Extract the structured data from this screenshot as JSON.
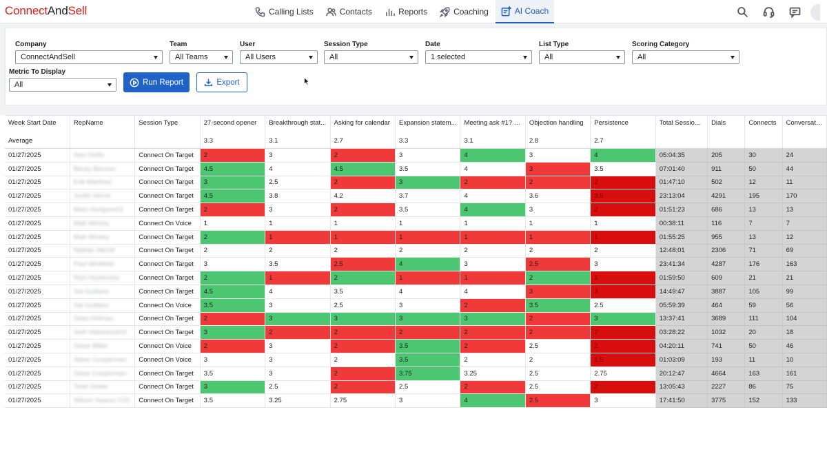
{
  "app": {
    "logo_part1": "Connect",
    "logo_part2": "And",
    "logo_part3": "Sell"
  },
  "nav": {
    "items": [
      {
        "label": "Calling Lists",
        "icon": "phone-icon"
      },
      {
        "label": "Contacts",
        "icon": "contacts-icon"
      },
      {
        "label": "Reports",
        "icon": "reports-icon"
      },
      {
        "label": "Coaching",
        "icon": "rocket-icon"
      },
      {
        "label": "AI Coach",
        "icon": "ai-coach-icon",
        "active": true
      }
    ],
    "right_icons": [
      "search-icon",
      "headset-icon",
      "chat-icon"
    ]
  },
  "filters": {
    "company": {
      "label": "Company",
      "value": "ConnectAndSell"
    },
    "team": {
      "label": "Team",
      "value": "All Teams"
    },
    "user": {
      "label": "User",
      "value": "All Users"
    },
    "session_type": {
      "label": "Session Type",
      "value": "All"
    },
    "date": {
      "label": "Date",
      "value": "1 selected"
    },
    "list_type": {
      "label": "List Type",
      "value": "All"
    },
    "scoring_category": {
      "label": "Scoring Category",
      "value": "All"
    },
    "metric": {
      "label": "Metric To Display",
      "value": "All"
    },
    "run_label": "Run Report",
    "export_label": "Export"
  },
  "table": {
    "columns": [
      "Week Start Date",
      "RepName",
      "Session Type",
      "27-second opener",
      "Breakthrough stat...",
      "Asking for calendar",
      "Expansion statem...",
      "Meeting ask #1? S...",
      "Objection handling",
      "Persistence",
      "Total Session ...",
      "Dials",
      "Connects",
      "Conversatio..."
    ],
    "averages": [
      "Average",
      "",
      "",
      "3.3",
      "3.1",
      "2.7",
      "3.3",
      "3.1",
      "2.8",
      "2.7",
      "",
      "",
      "",
      ""
    ],
    "rows": [
      {
        "cells": [
          "01/27/2025",
          "Alex Hollis",
          "Connect On Target",
          "2",
          "3",
          "2",
          "3",
          "4",
          "3",
          "4",
          "05:04:35",
          "205",
          "30",
          "24"
        ],
        "colors": [
          "r",
          "w",
          "r",
          "w",
          "g",
          "w",
          "g"
        ]
      },
      {
        "cells": [
          "01/27/2025",
          "Becky Benson",
          "Connect On Target",
          "4.5",
          "4",
          "4.5",
          "3.5",
          "4",
          "3",
          "3.5",
          "07:01:40",
          "911",
          "50",
          "44"
        ],
        "colors": [
          "g",
          "w",
          "g",
          "w",
          "w",
          "r",
          "w"
        ]
      },
      {
        "cells": [
          "01/27/2025",
          "Erik Martinez",
          "Connect On Target",
          "3",
          "2.5",
          "2",
          "3",
          "2",
          "2",
          "2",
          "01:47:10",
          "502",
          "12",
          "11"
        ],
        "colors": [
          "g",
          "w",
          "r",
          "g",
          "r",
          "r",
          "d"
        ]
      },
      {
        "cells": [
          "01/27/2025",
          "Justin Vance",
          "Connect On Target",
          "4.5",
          "3.8",
          "4.2",
          "3.7",
          "4",
          "3.6",
          "3.5",
          "23:13:04",
          "4291",
          "195",
          "170"
        ],
        "colors": [
          "g",
          "w",
          "w",
          "w",
          "w",
          "w",
          "d"
        ]
      },
      {
        "cells": [
          "01/27/2025",
          "Marc Hodgson01",
          "Connect On Target",
          "2",
          "3",
          "2",
          "3.5",
          "4",
          "3",
          "2",
          "01:51:23",
          "686",
          "13",
          "13"
        ],
        "colors": [
          "r",
          "w",
          "r",
          "w",
          "g",
          "w",
          "d"
        ]
      },
      {
        "cells": [
          "01/27/2025",
          "Matt Wickey",
          "Connect On Voice",
          "1",
          "1",
          "1",
          "1",
          "1",
          "1",
          "1",
          "00:38:11",
          "116",
          "7",
          "7"
        ],
        "colors": [
          "w",
          "w",
          "w",
          "w",
          "w",
          "w",
          "w"
        ]
      },
      {
        "cells": [
          "01/27/2025",
          "Matt Wickey",
          "Connect On Target",
          "2",
          "1",
          "1",
          "1",
          "1",
          "1",
          "1",
          "01:55:25",
          "955",
          "13",
          "12"
        ],
        "colors": [
          "g",
          "r",
          "r",
          "r",
          "r",
          "r",
          "d"
        ]
      },
      {
        "cells": [
          "01/27/2025",
          "Nathan Merrill",
          "Connect On Target",
          "2",
          "2",
          "2",
          "2",
          "2",
          "2",
          "2",
          "12:48:01",
          "2306",
          "71",
          "69"
        ],
        "colors": [
          "w",
          "w",
          "w",
          "w",
          "w",
          "w",
          "w"
        ]
      },
      {
        "cells": [
          "01/27/2025",
          "Paul Whitfield",
          "Connect On Target",
          "3",
          "3.5",
          "2.5",
          "4",
          "3",
          "2.5",
          "3",
          "23:41:34",
          "4287",
          "176",
          "163"
        ],
        "colors": [
          "w",
          "w",
          "r",
          "g",
          "w",
          "r",
          "w"
        ]
      },
      {
        "cells": [
          "01/27/2025",
          "Rich Hashimoto",
          "Connect On Target",
          "2",
          "1",
          "2",
          "1",
          "1",
          "2",
          "1",
          "01:59:50",
          "609",
          "21",
          "21"
        ],
        "colors": [
          "g",
          "r",
          "g",
          "r",
          "r",
          "g",
          "d"
        ]
      },
      {
        "cells": [
          "01/27/2025",
          "Sal Guiliano",
          "Connect On Target",
          "4.5",
          "4",
          "3.5",
          "4",
          "4",
          "3",
          "3",
          "14:49:47",
          "3887",
          "105",
          "99"
        ],
        "colors": [
          "g",
          "w",
          "w",
          "w",
          "w",
          "r",
          "d"
        ]
      },
      {
        "cells": [
          "01/27/2025",
          "Sal Guiliano",
          "Connect On Voice",
          "3.5",
          "3",
          "2.5",
          "3",
          "2",
          "3.5",
          "2.5",
          "05:59:39",
          "464",
          "59",
          "56"
        ],
        "colors": [
          "g",
          "w",
          "w",
          "w",
          "r",
          "g",
          "w"
        ]
      },
      {
        "cells": [
          "01/27/2025",
          "Sean Holman",
          "Connect On Target",
          "2",
          "3",
          "3",
          "3",
          "3",
          "2",
          "3",
          "13:37:41",
          "3689",
          "111",
          "104"
        ],
        "colors": [
          "r",
          "g",
          "g",
          "g",
          "g",
          "r",
          "g"
        ]
      },
      {
        "cells": [
          "01/27/2025",
          "Seth Weinstock03",
          "Connect On Target",
          "3",
          "2",
          "2",
          "2",
          "2",
          "2",
          "2",
          "03:28:22",
          "1032",
          "20",
          "18"
        ],
        "colors": [
          "g",
          "r",
          "r",
          "r",
          "r",
          "r",
          "d"
        ]
      },
      {
        "cells": [
          "01/27/2025",
          "Steve Miller",
          "Connect On Voice",
          "2",
          "3",
          "2",
          "3.5",
          "2",
          "2.5",
          "2",
          "04:20:11",
          "741",
          "50",
          "46"
        ],
        "colors": [
          "r",
          "w",
          "r",
          "g",
          "r",
          "w",
          "d"
        ]
      },
      {
        "cells": [
          "01/27/2025",
          "Steve Cooperman",
          "Connect On Voice",
          "3",
          "3",
          "2",
          "3.5",
          "2",
          "2",
          "1.5",
          "01:03:09",
          "193",
          "11",
          "10"
        ],
        "colors": [
          "w",
          "w",
          "w",
          "g",
          "w",
          "w",
          "d"
        ]
      },
      {
        "cells": [
          "01/27/2025",
          "Steve Cooperman",
          "Connect On Target",
          "3.5",
          "3",
          "2",
          "3.75",
          "3.25",
          "2.5",
          "2.75",
          "20:12:47",
          "4664",
          "163",
          "161"
        ],
        "colors": [
          "w",
          "w",
          "r",
          "g",
          "w",
          "w",
          "w"
        ]
      },
      {
        "cells": [
          "01/27/2025",
          "Todd Snider",
          "Connect On Target",
          "3",
          "2.5",
          "2",
          "2.5",
          "2",
          "2.5",
          "2",
          "13:05:43",
          "2227",
          "86",
          "75"
        ],
        "colors": [
          "g",
          "w",
          "r",
          "w",
          "r",
          "w",
          "d"
        ]
      },
      {
        "cells": [
          "01/27/2025",
          "Wilson Suarez C00",
          "Connect On Target",
          "3.5",
          "3.25",
          "2.75",
          "3",
          "4",
          "2.5",
          "3",
          "17:41:50",
          "3775",
          "152",
          "133"
        ],
        "colors": [
          "w",
          "w",
          "w",
          "w",
          "g",
          "r",
          "w"
        ]
      }
    ]
  }
}
